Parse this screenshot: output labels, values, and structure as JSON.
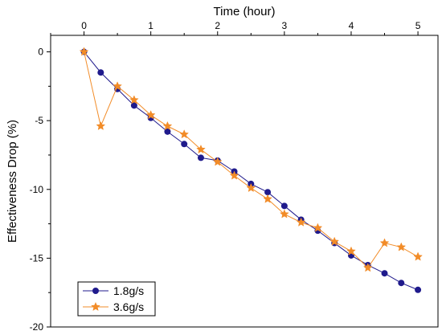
{
  "chart_data": {
    "type": "line",
    "xlabel": "Time (hour)",
    "ylabel": "Effectiveness Drop (%)",
    "xlim": [
      -0.5,
      5.3
    ],
    "ylim": [
      -20,
      1.2
    ],
    "x_ticks": [
      0,
      1,
      2,
      3,
      4,
      5
    ],
    "y_ticks": [
      0,
      -5,
      -10,
      -15,
      -20
    ],
    "x_tick_labels": [
      "0",
      "1",
      "2",
      "3",
      "4",
      "5"
    ],
    "y_tick_labels": [
      "0",
      "-5",
      "-10",
      "-15",
      "-20"
    ],
    "x_axis_position": "top",
    "legend_position": "bottom-left",
    "grid": false,
    "series": [
      {
        "name": "1.8g/s",
        "color": "#1f1a8c",
        "marker": "circle",
        "x": [
          0,
          0.25,
          0.5,
          0.75,
          1.0,
          1.25,
          1.5,
          1.75,
          2.0,
          2.25,
          2.5,
          2.75,
          3.0,
          3.25,
          3.5,
          3.75,
          4.0,
          4.25,
          4.5,
          4.75,
          5.0
        ],
        "y": [
          0,
          -1.5,
          -2.7,
          -3.9,
          -4.8,
          -5.8,
          -6.7,
          -7.7,
          -7.9,
          -8.7,
          -9.6,
          -10.2,
          -11.2,
          -12.2,
          -13.0,
          -13.9,
          -14.8,
          -15.5,
          -16.1,
          -16.8,
          -17.3
        ]
      },
      {
        "name": "3.6g/s",
        "color": "#f28c28",
        "marker": "star",
        "x": [
          0,
          0.25,
          0.5,
          0.75,
          1.0,
          1.25,
          1.5,
          1.75,
          2.0,
          2.25,
          2.5,
          2.75,
          3.0,
          3.25,
          3.5,
          3.75,
          4.0,
          4.25,
          4.5,
          4.75,
          5.0
        ],
        "y": [
          0,
          -5.4,
          -2.5,
          -3.5,
          -4.6,
          -5.4,
          -6.0,
          -7.1,
          -8.0,
          -9.0,
          -9.9,
          -10.7,
          -11.8,
          -12.4,
          -12.8,
          -13.8,
          -14.5,
          -15.7,
          -13.9,
          -14.2,
          -14.9
        ]
      }
    ]
  }
}
